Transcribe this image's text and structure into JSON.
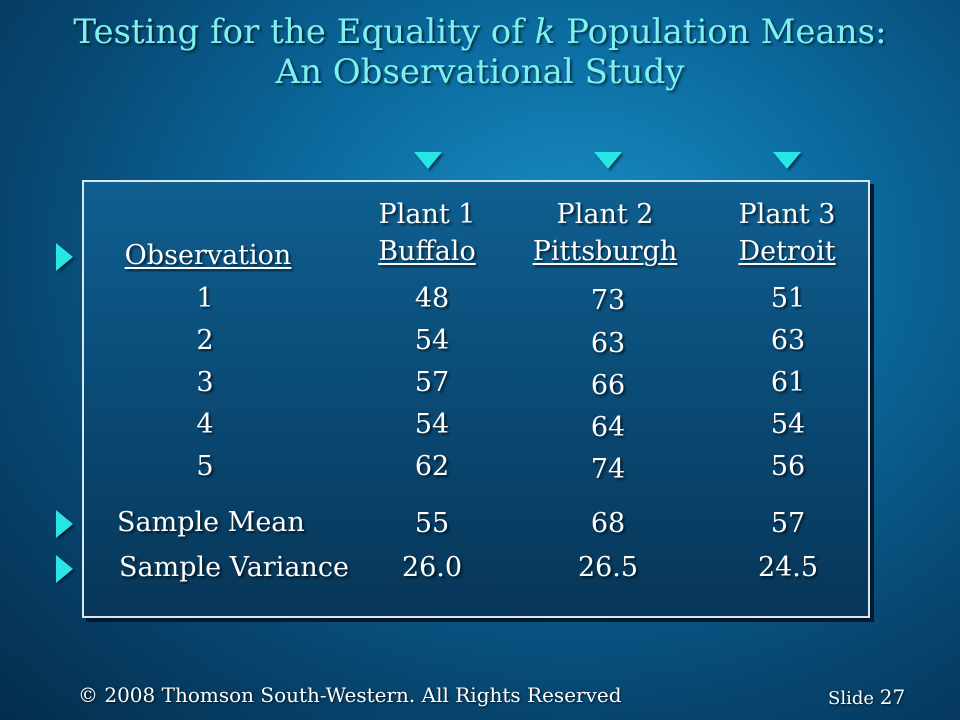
{
  "title": {
    "line1_before": "Testing for the Equality of ",
    "line1_k": "k",
    "line1_after": "  Population Means:",
    "line2": "An Observational Study"
  },
  "table": {
    "observation_header": "Observation",
    "plants": [
      {
        "name": "Plant 1",
        "city": "Buffalo",
        "values": [
          "48",
          "54",
          "57",
          "54",
          "62"
        ],
        "mean": "55",
        "variance": "26.0"
      },
      {
        "name": "Plant 2",
        "city": "Pittsburgh",
        "values": [
          "73",
          "63",
          "66",
          "64",
          "74"
        ],
        "mean": "68",
        "variance": "26.5"
      },
      {
        "name": "Plant 3",
        "city": "Detroit",
        "values": [
          "51",
          "63",
          "61",
          "54",
          "56"
        ],
        "mean": "57",
        "variance": "24.5"
      }
    ],
    "observations": [
      "1",
      "2",
      "3",
      "4",
      "5"
    ],
    "sample_mean_label": "Sample Mean",
    "sample_variance_label": "Sample Variance"
  },
  "footer": {
    "copyright": "© 2008  Thomson South-Western.  All Rights Reserved",
    "slide_label": "Slide",
    "slide_number": "27"
  },
  "colors": {
    "title": "#7ff0ee",
    "bullet": "#28e6e6",
    "background": "#0b6a9e"
  }
}
